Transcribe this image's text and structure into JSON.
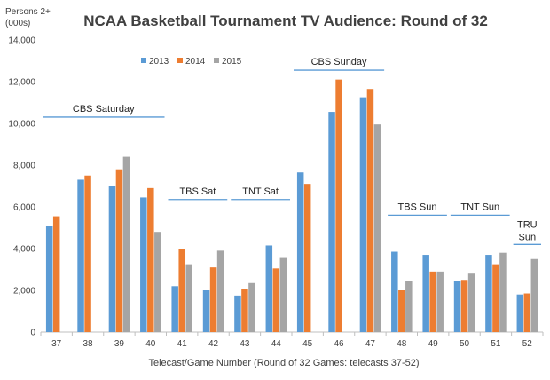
{
  "chart_data": {
    "type": "bar",
    "title": "NCAA Basketball Tournament TV Audience: Round of 32",
    "ylabel_line1": "Persons 2+",
    "ylabel_line2": "(000s)",
    "xlabel": "Telecast/Game Number (Round of 32 Games: telecasts 37-52)",
    "ylim": [
      0,
      14000
    ],
    "yticks": [
      0,
      2000,
      4000,
      6000,
      8000,
      10000,
      12000,
      14000
    ],
    "ytick_labels": [
      "0",
      "2,000",
      "4,000",
      "6,000",
      "8,000",
      "10,000",
      "12,000",
      "14,000"
    ],
    "categories": [
      "37",
      "38",
      "39",
      "40",
      "41",
      "42",
      "43",
      "44",
      "45",
      "46",
      "47",
      "48",
      "49",
      "50",
      "51",
      "52"
    ],
    "series": [
      {
        "name": "2013",
        "color": "#5B9BD5",
        "values": [
          5100,
          7300,
          7000,
          6450,
          2200,
          2000,
          1750,
          4150,
          7650,
          10550,
          11250,
          3850,
          3700,
          2450,
          3700,
          1800
        ]
      },
      {
        "name": "2014",
        "color": "#ED7D31",
        "values": [
          5550,
          7500,
          7800,
          6900,
          4000,
          3100,
          2050,
          3050,
          7100,
          12100,
          11650,
          2000,
          2900,
          2500,
          3250,
          1850
        ]
      },
      {
        "name": "2015",
        "color": "#A5A5A5",
        "values": [
          null,
          null,
          8400,
          4800,
          3250,
          3900,
          2350,
          3550,
          null,
          null,
          9950,
          2450,
          2900,
          2800,
          3800,
          3500
        ]
      }
    ],
    "legend_position": "top-left",
    "grid": false,
    "annotations": [
      {
        "text": "CBS Saturday",
        "first": "37",
        "last": "40",
        "y": 10300
      },
      {
        "text": "TBS Sat",
        "first": "41",
        "last": "42",
        "y": 6350
      },
      {
        "text": "TNT Sat",
        "first": "43",
        "last": "44",
        "y": 6350
      },
      {
        "text": "CBS Sunday",
        "first": "45",
        "last": "47",
        "y": 12550
      },
      {
        "text": "TBS Sun",
        "first": "48",
        "last": "49",
        "y": 5600
      },
      {
        "text": "TNT Sun",
        "first": "50",
        "last": "51",
        "y": 5600
      },
      {
        "text": "TRU",
        "text2": "Sun",
        "first": "52",
        "last": "52",
        "y": 4200
      }
    ]
  }
}
